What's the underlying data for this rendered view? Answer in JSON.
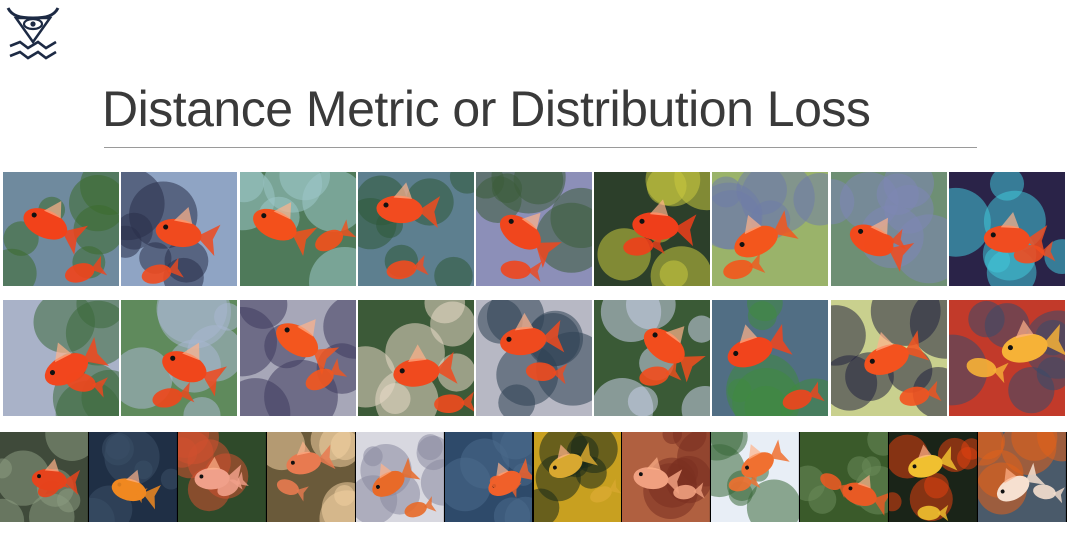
{
  "slide": {
    "title": "Distance Metric or Distribution Loss"
  },
  "logo": {
    "icon": "bull-eye-waves-icon"
  },
  "rows": [
    {
      "name": "row-1",
      "tiles": [
        {
          "bg": "#6f8a9e",
          "fish": "#f2421a",
          "accent": "#3c6b2e"
        },
        {
          "bg": "#8fa4c4",
          "fish": "#f04a1e",
          "accent": "#2a2f4a"
        },
        {
          "bg": "#4f7a5a",
          "fish": "#f3501b",
          "accent": "#9cc6c8"
        },
        {
          "bg": "#5d7f8f",
          "fish": "#f24b1f",
          "accent": "#2f5a3a"
        },
        {
          "bg": "#8c8fb8",
          "fish": "#f0461d",
          "accent": "#3d5d3a"
        },
        {
          "bg": "#2c3f2a",
          "fish": "#ef3e1a",
          "accent": "#c9c93e"
        },
        {
          "bg": "#9ab36a",
          "fish": "#f3561c",
          "accent": "#6f7ba8"
        },
        {
          "bg": "#6e8f74",
          "fish": "#f24a1c",
          "accent": "#7d86b5"
        },
        {
          "bg": "#2a2348",
          "fish": "#f04c20",
          "accent": "#42c7d8"
        }
      ]
    },
    {
      "name": "row-2",
      "tiles": [
        {
          "bg": "#a9b2c8",
          "fish": "#f2461d",
          "accent": "#3d6a3c"
        },
        {
          "bg": "#5f8a5c",
          "fish": "#f0461b",
          "accent": "#a8b6d0"
        },
        {
          "bg": "#a7a7b8",
          "fish": "#f3561e",
          "accent": "#3f3c5e"
        },
        {
          "bg": "#3c5a38",
          "fish": "#f04a1e",
          "accent": "#e8d8c6"
        },
        {
          "bg": "#b7b8c4",
          "fish": "#ef4a1e",
          "accent": "#2f4253"
        },
        {
          "bg": "#3a5a36",
          "fish": "#f24d1d",
          "accent": "#c8d0e8"
        },
        {
          "bg": "#516e84",
          "fish": "#f1441c",
          "accent": "#3f8a3f"
        },
        {
          "bg": "#c9d08e",
          "fish": "#f3521e",
          "accent": "#222240"
        },
        {
          "bg": "#c23a2a",
          "fish": "#f6b237",
          "accent": "#3a4a6a"
        }
      ]
    }
  ],
  "strip": {
    "tiles": [
      {
        "bg": "#3f4a3a",
        "fish": "#e6431c",
        "accent": "#8a9a80"
      },
      {
        "bg": "#1f2f45",
        "fish": "#f08820",
        "accent": "#3a4f66"
      },
      {
        "bg": "#2f4a2a",
        "fish": "#f0a08a",
        "accent": "#d05030"
      },
      {
        "bg": "#6a5a3a",
        "fish": "#e87a50",
        "accent": "#f0d0a0"
      },
      {
        "bg": "#d8d8e0",
        "fish": "#e86a28",
        "accent": "#8a8aa0"
      },
      {
        "bg": "#2e4a6a",
        "fish": "#f0602a",
        "accent": "#4a6a8a"
      },
      {
        "bg": "#c8a020",
        "fish": "#d8a830",
        "accent": "#1a2a1a"
      },
      {
        "bg": "#b06040",
        "fish": "#f0a080",
        "accent": "#7a3020"
      },
      {
        "bg": "#e8eef6",
        "fish": "#f07030",
        "accent": "#3a6a3a"
      },
      {
        "bg": "#3a5a2a",
        "fish": "#e85a24",
        "accent": "#6a8a5a"
      },
      {
        "bg": "#1a2418",
        "fish": "#f0c030",
        "accent": "#e04010"
      },
      {
        "bg": "#4a5a6a",
        "fish": "#f6e0d0",
        "accent": "#e0601a"
      }
    ]
  }
}
